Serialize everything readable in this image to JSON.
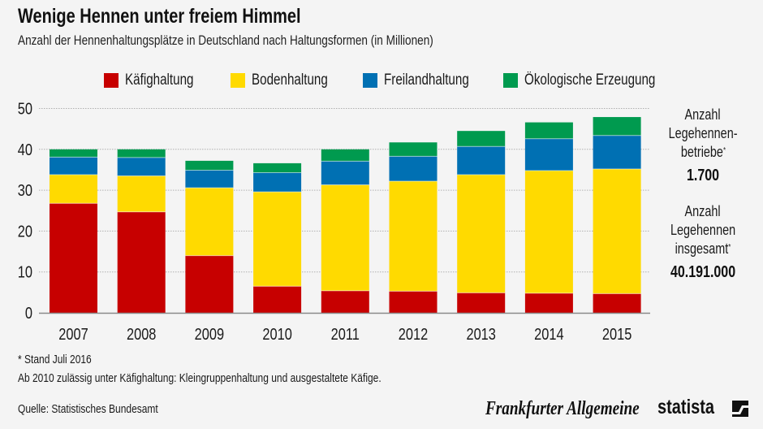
{
  "header": {
    "title": "Wenige Hennen unter freiem Himmel",
    "subtitle": "Anzahl der Hennenhaltungsplätze in Deutschland nach Haltungsformen (in Millionen)"
  },
  "legend": [
    {
      "label": "Käfighaltung",
      "color": "#c70000"
    },
    {
      "label": "Bodenhaltung",
      "color": "#ffda00"
    },
    {
      "label": "Freilandhaltung",
      "color": "#0070b3"
    },
    {
      "label": "Ökologische Erzeugung",
      "color": "#009a4f"
    }
  ],
  "chart_data": {
    "type": "bar",
    "stacked": true,
    "title": "Wenige Hennen unter freiem Himmel",
    "subtitle": "Anzahl der Hennenhaltungsplätze in Deutschland nach Haltungsformen (in Millionen)",
    "xlabel": "",
    "ylabel": "",
    "categories": [
      "2007",
      "2008",
      "2009",
      "2010",
      "2011",
      "2012",
      "2013",
      "2014",
      "2015"
    ],
    "series": [
      {
        "name": "Käfighaltung",
        "color": "#c70000",
        "values": [
          26.8,
          24.7,
          14.0,
          6.5,
          5.4,
          5.3,
          4.9,
          4.8,
          4.7
        ]
      },
      {
        "name": "Bodenhaltung",
        "color": "#ffda00",
        "values": [
          7.0,
          8.8,
          16.6,
          23.1,
          25.9,
          26.9,
          28.9,
          30.0,
          30.5
        ]
      },
      {
        "name": "Freilandhaltung",
        "color": "#0070b3",
        "values": [
          4.3,
          4.5,
          4.3,
          4.7,
          5.8,
          6.1,
          6.9,
          7.8,
          8.2
        ]
      },
      {
        "name": "Ökologische Erzeugung",
        "color": "#009a4f",
        "values": [
          1.9,
          2.0,
          2.3,
          2.3,
          2.9,
          3.4,
          3.8,
          4.0,
          4.5
        ]
      }
    ],
    "ylim": [
      0,
      50
    ],
    "yticks": [
      0,
      10,
      20,
      30,
      40,
      50
    ],
    "grid": true,
    "legend_position": "top"
  },
  "side_panel": {
    "farms_label_1": "Anzahl",
    "farms_label_2": "Legehennen-",
    "farms_label_3": "betriebe",
    "farms_mark": "*",
    "farms_value": "1.700",
    "hens_label_1": "Anzahl",
    "hens_label_2": "Legehennen",
    "hens_label_3": "insgesamt",
    "hens_mark": "*",
    "hens_value": "40.191.000"
  },
  "footer": {
    "note_1": "* Stand Juli 2016",
    "note_2": "Ab 2010 zulässig unter Käfighaltung: Kleingruppenhaltung und ausgestaltete Käfige.",
    "source": "Quelle: Statistisches Bundesamt",
    "logo_faz": "Frankfurter Allgemeine",
    "logo_statista": "statista"
  }
}
